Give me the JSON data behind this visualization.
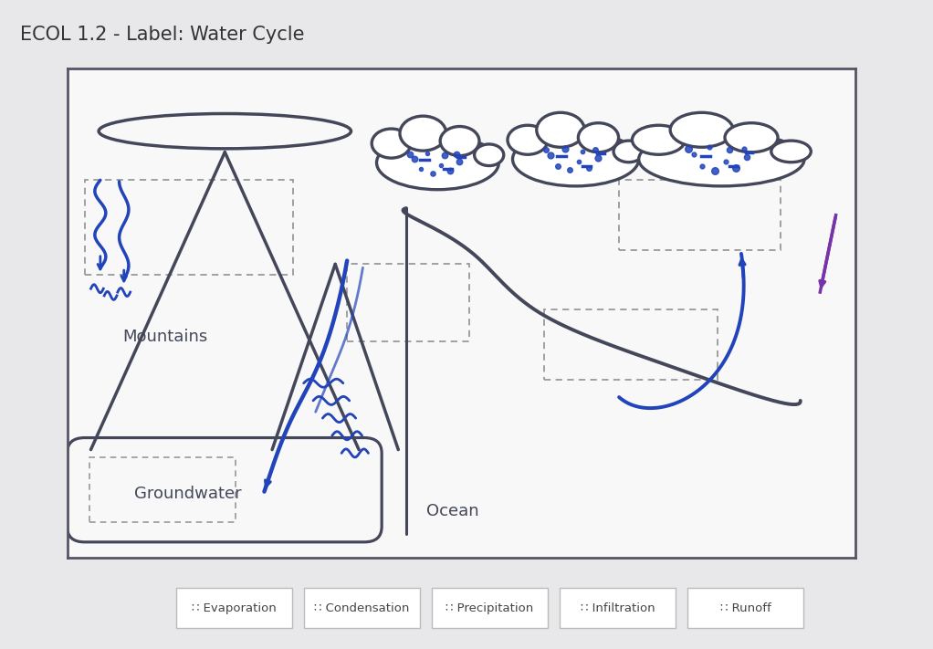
{
  "title": "ECOL 1.2 - Label: Water Cycle",
  "title_fontsize": 15,
  "title_color": "#333333",
  "bg_color": "#e8e8eb",
  "diagram_bg": "#f8f8f8",
  "diagram_border": "#555566",
  "label_items": [
    "Evaporation",
    "Condensation",
    "Precipitation",
    "Infiltration",
    "Runoff"
  ],
  "draw_color": "#44475a",
  "blue_color": "#2244bb",
  "purple_color": "#7733aa",
  "dashed_color": "#999999",
  "cloud_color": "#44475a"
}
